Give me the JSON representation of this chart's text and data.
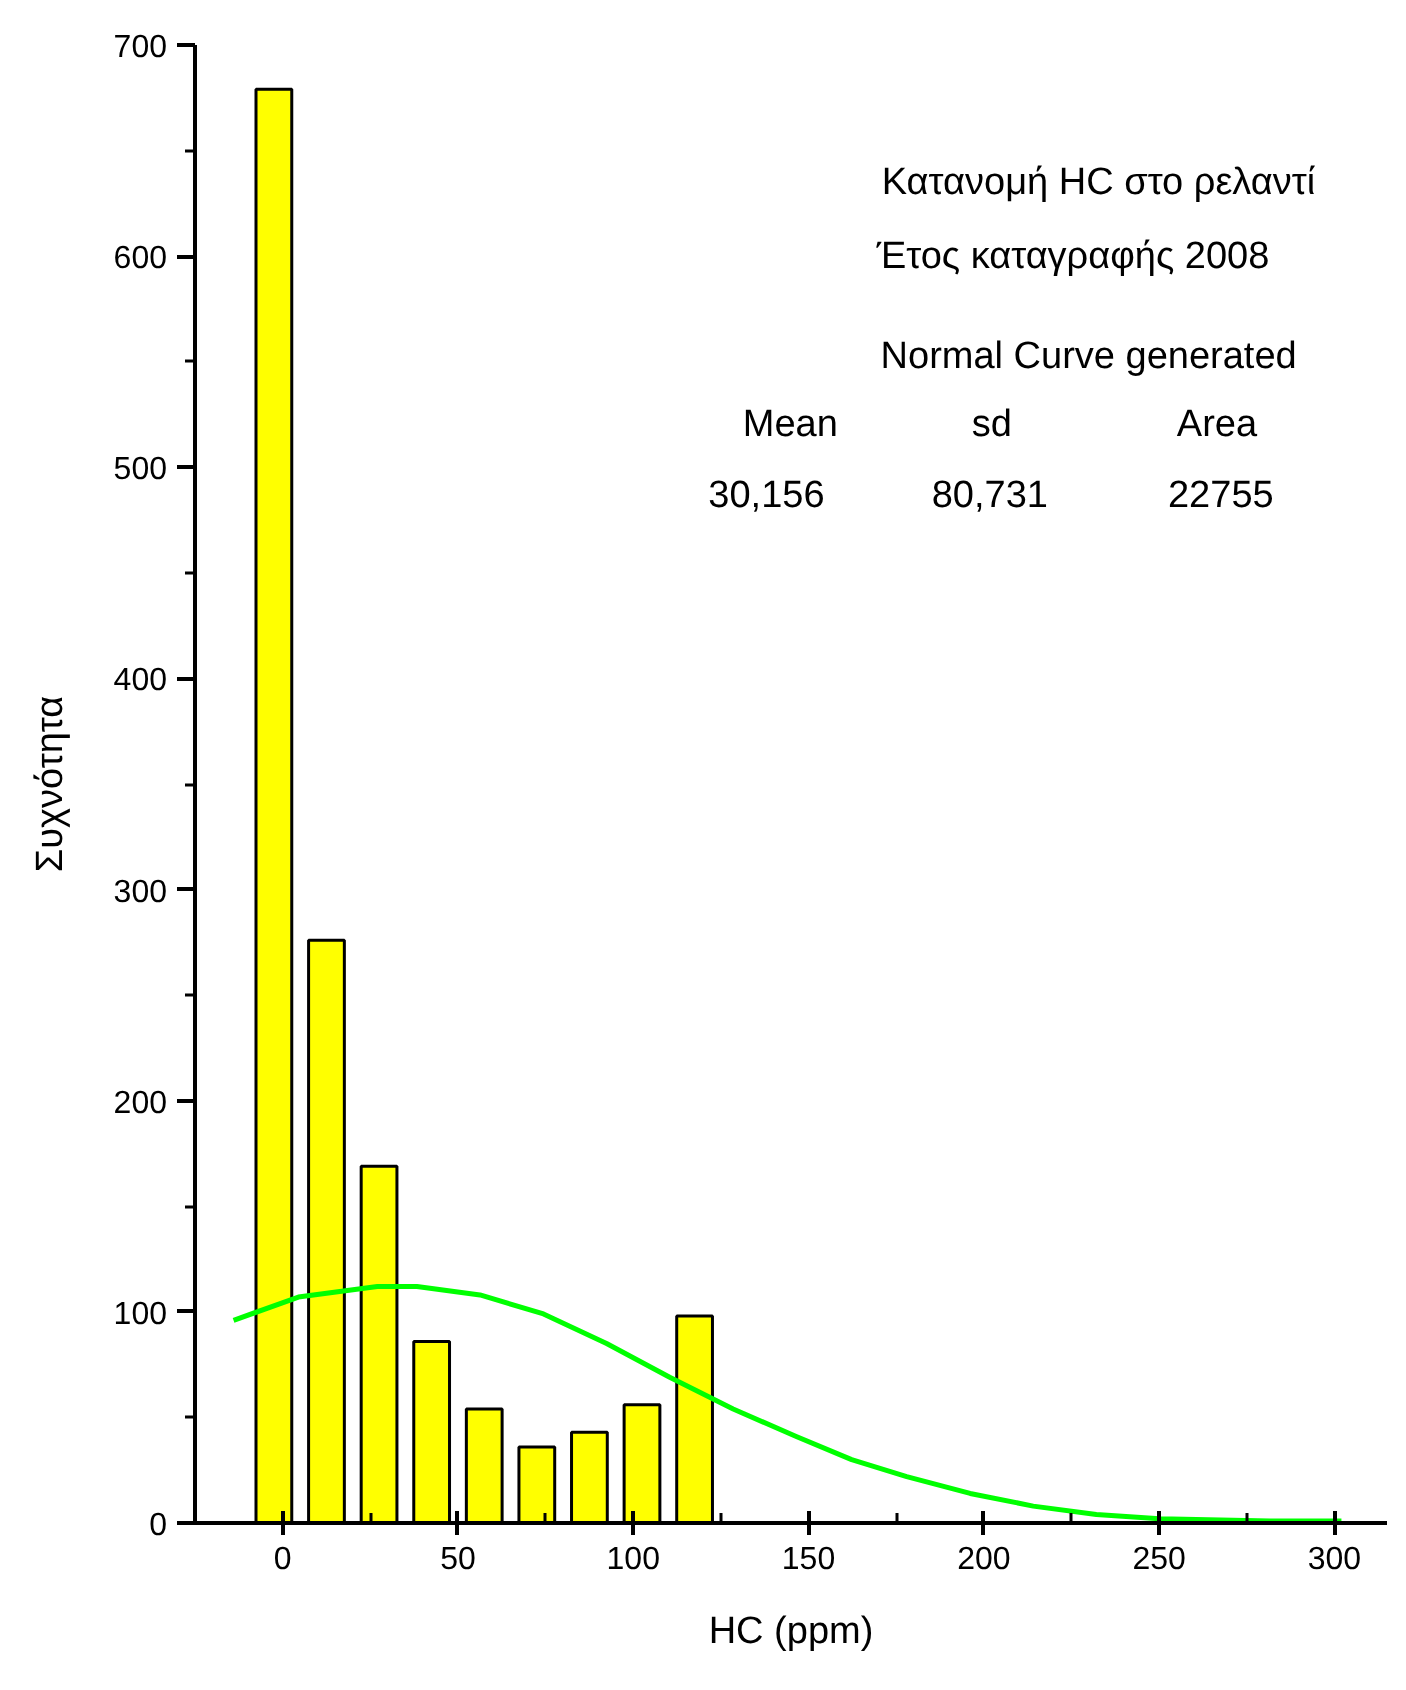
{
  "chart_data": {
    "type": "histogram",
    "xlabel": "HC (ppm)",
    "ylabel": "Συχνότητα",
    "annotations": [
      "Κατανομή HC στο ρελαντί",
      "Έτος καταγραφής 2008",
      "Normal Curve generated",
      "Mean",
      "sd",
      "Area",
      "30,156",
      "80,731",
      "22755"
    ],
    "series": [
      {
        "color": "#ffff00",
        "bins": [
          -10,
          5,
          20,
          35,
          50,
          65,
          80,
          95,
          110,
          125
        ],
        "values": [
          679,
          276,
          169,
          86,
          54,
          36,
          43,
          56,
          98
        ]
      },
      {
        "type": "line",
        "color": "#00ff00",
        "x": [
          -14.0,
          4.5,
          27.0,
          38.3,
          56.3,
          74.4,
          92.4,
          110.4,
          128.5,
          146.5,
          162.3,
          178.0,
          196.1,
          214.1,
          232.1,
          250.1,
          281.7,
          302.0
        ],
        "values": [
          96,
          107,
          112,
          112,
          108,
          99,
          85,
          69,
          54,
          41,
          30,
          22,
          14,
          8,
          4,
          2,
          1,
          1
        ]
      }
    ],
    "xlim": [
      -25,
      315
    ],
    "ylim": [
      0,
      700
    ],
    "xticks": [
      0,
      50,
      100,
      150,
      200,
      250,
      300
    ],
    "yticks": [
      0,
      100,
      200,
      300,
      400,
      500,
      600,
      700
    ],
    "grid": false
  }
}
